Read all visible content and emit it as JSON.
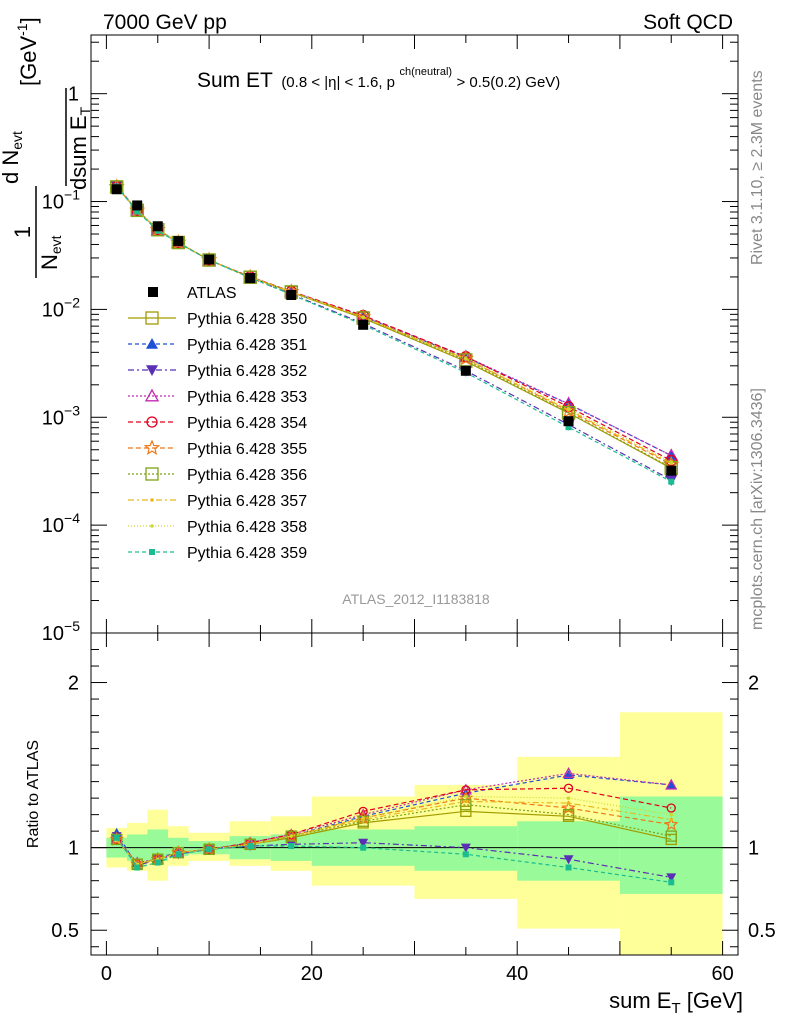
{
  "header": {
    "left": "7000 GeV pp",
    "right": "Soft QCD"
  },
  "side": {
    "top": "Rivet 3.1.10, ≥ 2.3M events",
    "bottom": "mcplots.cern.ch [arXiv:1306.3436]"
  },
  "colors": {
    "band_inner": "#99fa99",
    "band_outer": "#ffff99"
  },
  "chart_data": {
    "type": "line",
    "title_main": "Sum ET",
    "title_sub": "(0.8 < |η| < 1.6, p",
    "title_sup": "ch(neutral)",
    "title_tail": " > 0.5(0.2) GeV)",
    "analysis_label": "ATLAS_2012_I1183818",
    "xlabel": "sum E",
    "xlabel_sub": "T",
    "xlabel_unit": " [GeV]",
    "ylabel_main": "1/N_evt dN_evt/dsum E_T [GeV^-1]",
    "ylabel_parts": {
      "num": "1",
      "den": "N",
      "den_sub": "evt",
      "d": "d N",
      "d_sub": "evt",
      "dsum": "dsum E",
      "dsum_sub": "T",
      "unit": "[GeV",
      "unit_sup": "-1",
      "unit_close": "]"
    },
    "ratio_ylabel": "Ratio to ATLAS",
    "xlim": [
      -1.5,
      61.5
    ],
    "ylim": [
      1e-05,
      3.5
    ],
    "ratio_ylim": [
      0.35,
      2.3
    ],
    "log_y": true,
    "x_ticks": [
      0,
      20,
      40,
      60
    ],
    "y_ticks": [
      {
        "v": 1,
        "label": "1",
        "sup": ""
      },
      {
        "v": 0.1,
        "label": "10",
        "sup": "−1"
      },
      {
        "v": 0.01,
        "label": "10",
        "sup": "−2"
      },
      {
        "v": 0.001,
        "label": "10",
        "sup": "−3"
      },
      {
        "v": 0.0001,
        "label": "10",
        "sup": "−4"
      },
      {
        "v": 1e-05,
        "label": "10",
        "sup": "−5"
      }
    ],
    "ratio_ticks": [
      {
        "v": 0.5,
        "label": "0.5"
      },
      {
        "v": 1,
        "label": "1"
      },
      {
        "v": 2,
        "label": "2"
      }
    ],
    "bins": [
      [
        0,
        2
      ],
      [
        2,
        4
      ],
      [
        4,
        6
      ],
      [
        6,
        8
      ],
      [
        8,
        12
      ],
      [
        12,
        16
      ],
      [
        16,
        20
      ],
      [
        20,
        30
      ],
      [
        30,
        40
      ],
      [
        40,
        50
      ],
      [
        50,
        60
      ]
    ],
    "x": [
      1,
      3,
      5,
      7,
      10,
      14,
      18,
      25,
      35,
      45,
      55
    ],
    "data": {
      "name": "ATLAS",
      "values": [
        0.13,
        0.092,
        0.059,
        0.043,
        0.029,
        0.0195,
        0.0136,
        0.0072,
        0.0027,
        0.00092,
        0.00032
      ],
      "band_inner_up": [
        1.06,
        1.08,
        1.11,
        1.06,
        1.04,
        1.07,
        1.08,
        1.11,
        1.13,
        1.16,
        1.31
      ],
      "band_inner_dn": [
        0.94,
        0.92,
        0.92,
        0.95,
        0.96,
        0.93,
        0.92,
        0.89,
        0.86,
        0.8,
        0.72
      ],
      "band_outer_up": [
        1.12,
        1.15,
        1.23,
        1.13,
        1.09,
        1.16,
        1.19,
        1.31,
        1.38,
        1.55,
        1.82
      ],
      "band_outer_dn": [
        0.88,
        0.86,
        0.8,
        0.89,
        0.92,
        0.89,
        0.86,
        0.77,
        0.69,
        0.51,
        0.33
      ]
    },
    "series": [
      {
        "name": "Pythia 6.428 350",
        "color": "#a39c00",
        "dash": "",
        "marker": "square-open",
        "ratio": [
          1.05,
          0.9,
          0.93,
          0.97,
          0.99,
          1.02,
          1.06,
          1.15,
          1.22,
          1.19,
          1.05
        ]
      },
      {
        "name": "Pythia 6.428 351",
        "color": "#1f4fd6",
        "dash": "4,3",
        "marker": "triangle-up",
        "ratio": [
          1.09,
          0.89,
          0.94,
          0.97,
          0.99,
          1.02,
          1.07,
          1.19,
          1.33,
          1.44,
          1.38
        ]
      },
      {
        "name": "Pythia 6.428 352",
        "color": "#5b2fb5",
        "dash": "6,3,2,3",
        "marker": "triangle-down",
        "ratio": [
          1.07,
          0.89,
          0.93,
          0.96,
          0.99,
          1.01,
          1.02,
          1.03,
          1.0,
          0.93,
          0.82
        ]
      },
      {
        "name": "Pythia 6.428 353",
        "color": "#c22bb0",
        "dash": "2,2",
        "marker": "triangle-open",
        "ratio": [
          1.05,
          0.91,
          0.93,
          0.97,
          0.99,
          1.03,
          1.08,
          1.2,
          1.35,
          1.45,
          1.38
        ]
      },
      {
        "name": "Pythia 6.428 354",
        "color": "#e0001f",
        "dash": "5,3",
        "marker": "circle-open",
        "ratio": [
          1.05,
          0.9,
          0.93,
          0.97,
          0.99,
          1.03,
          1.08,
          1.22,
          1.35,
          1.36,
          1.24
        ]
      },
      {
        "name": "Pythia 6.428 355",
        "color": "#f07818",
        "dash": "5,3",
        "marker": "star-open",
        "ratio": [
          1.05,
          0.9,
          0.93,
          0.97,
          0.99,
          1.02,
          1.07,
          1.18,
          1.3,
          1.24,
          1.14
        ]
      },
      {
        "name": "Pythia 6.428 356",
        "color": "#7fa216",
        "dash": "2,2",
        "marker": "square-open",
        "ratio": [
          1.05,
          0.9,
          0.93,
          0.97,
          0.99,
          1.02,
          1.07,
          1.16,
          1.26,
          1.2,
          1.07
        ]
      },
      {
        "name": "Pythia 6.428 357",
        "color": "#e6b81c",
        "dash": "6,3,2,3",
        "marker": "dot",
        "ratio": [
          1.05,
          0.9,
          0.93,
          0.97,
          0.99,
          1.02,
          1.07,
          1.17,
          1.28,
          1.27,
          1.17
        ]
      },
      {
        "name": "Pythia 6.428 358",
        "color": "#cdd82a",
        "dash": "1,2",
        "marker": "dot",
        "ratio": [
          1.05,
          0.9,
          0.93,
          0.97,
          0.99,
          1.02,
          1.07,
          1.18,
          1.31,
          1.3,
          1.2
        ]
      },
      {
        "name": "Pythia 6.428 359",
        "color": "#1bbd90",
        "dash": "4,3",
        "marker": "square-filled",
        "ratio": [
          1.06,
          0.88,
          0.91,
          0.96,
          0.99,
          1.01,
          1.01,
          1.0,
          0.96,
          0.88,
          0.79
        ]
      }
    ]
  }
}
